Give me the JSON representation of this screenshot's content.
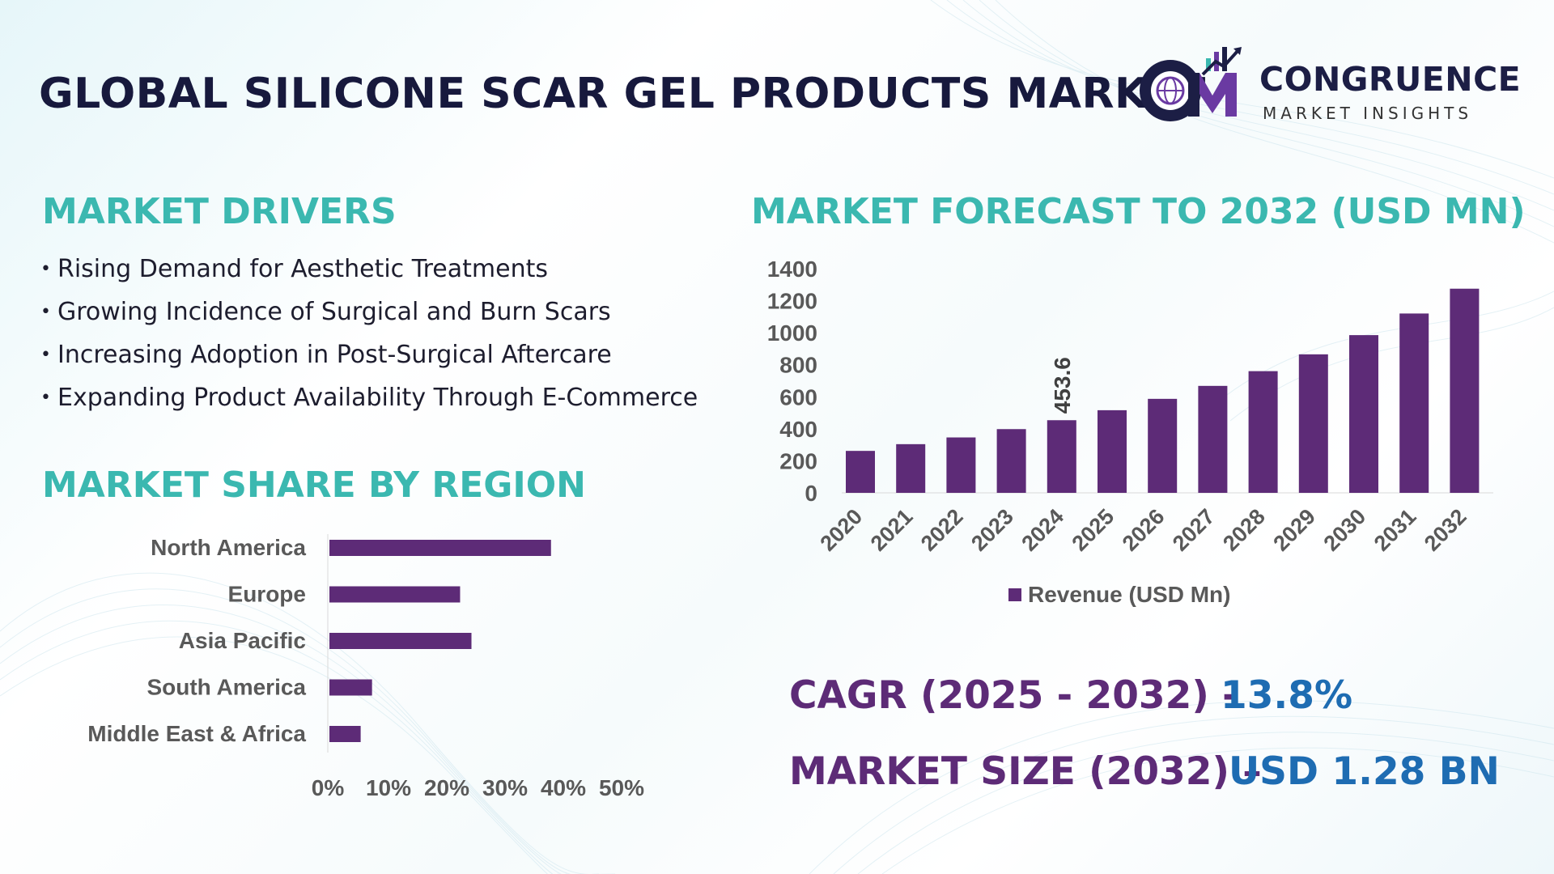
{
  "header": {
    "title": "GLOBAL SILICONE SCAR GEL PRODUCTS MARKET",
    "brand_name": "CONGRUENCE",
    "brand_tagline": "MARKET INSIGHTS"
  },
  "drivers": {
    "title": "MARKET DRIVERS",
    "items": [
      "Rising Demand for Aesthetic Treatments",
      "Growing Incidence of Surgical and Burn Scars",
      "Increasing Adoption in Post-Surgical Aftercare",
      "Expanding Product Availability Through E-Commerce"
    ]
  },
  "region_section": {
    "title": "MARKET SHARE BY REGION"
  },
  "forecast_section": {
    "title": "MARKET FORECAST TO 2032 (USD MN)"
  },
  "stats": {
    "cagr_label": "CAGR (2025 - 2032) -",
    "cagr_value": "13.8%",
    "size_label": "MARKET SIZE (2032) –",
    "size_value": "USD 1.28 BN"
  },
  "colors": {
    "bar": "#5d2b77",
    "section_title": "#3bb8b0",
    "main_title": "#17193d",
    "stat_label": "#5d2b77",
    "stat_value": "#1e6cb2",
    "axis_text": "#595959"
  },
  "chart_data": [
    {
      "type": "bar",
      "orientation": "horizontal",
      "title": "MARKET SHARE BY REGION",
      "categories": [
        "North America",
        "Europe",
        "Asia Pacific",
        "South America",
        "Middle East & Africa"
      ],
      "values": [
        39,
        23,
        25,
        7.5,
        5.5
      ],
      "unit": "%",
      "xlim": [
        0,
        50
      ],
      "ticks": [
        "0%",
        "10%",
        "20%",
        "30%",
        "40%",
        "50%"
      ],
      "grid": false
    },
    {
      "type": "bar",
      "orientation": "vertical",
      "title": "MARKET FORECAST TO 2032 (USD MN)",
      "categories": [
        "2020",
        "2021",
        "2022",
        "2023",
        "2024",
        "2025",
        "2026",
        "2027",
        "2028",
        "2029",
        "2030",
        "2031",
        "2032"
      ],
      "series": [
        {
          "name": "Revenue (USD Mn)",
          "values": [
            262,
            304,
            346,
            398,
            453.6,
            516,
            587,
            668,
            760,
            865,
            985,
            1120,
            1275
          ]
        }
      ],
      "data_labels": [
        {
          "category": "2024",
          "text": "453.6"
        }
      ],
      "ylim": [
        0,
        1400
      ],
      "yticks": [
        "0",
        "200",
        "400",
        "600",
        "800",
        "1000",
        "1200",
        "1400"
      ],
      "legend": "bottom",
      "grid": false
    }
  ]
}
